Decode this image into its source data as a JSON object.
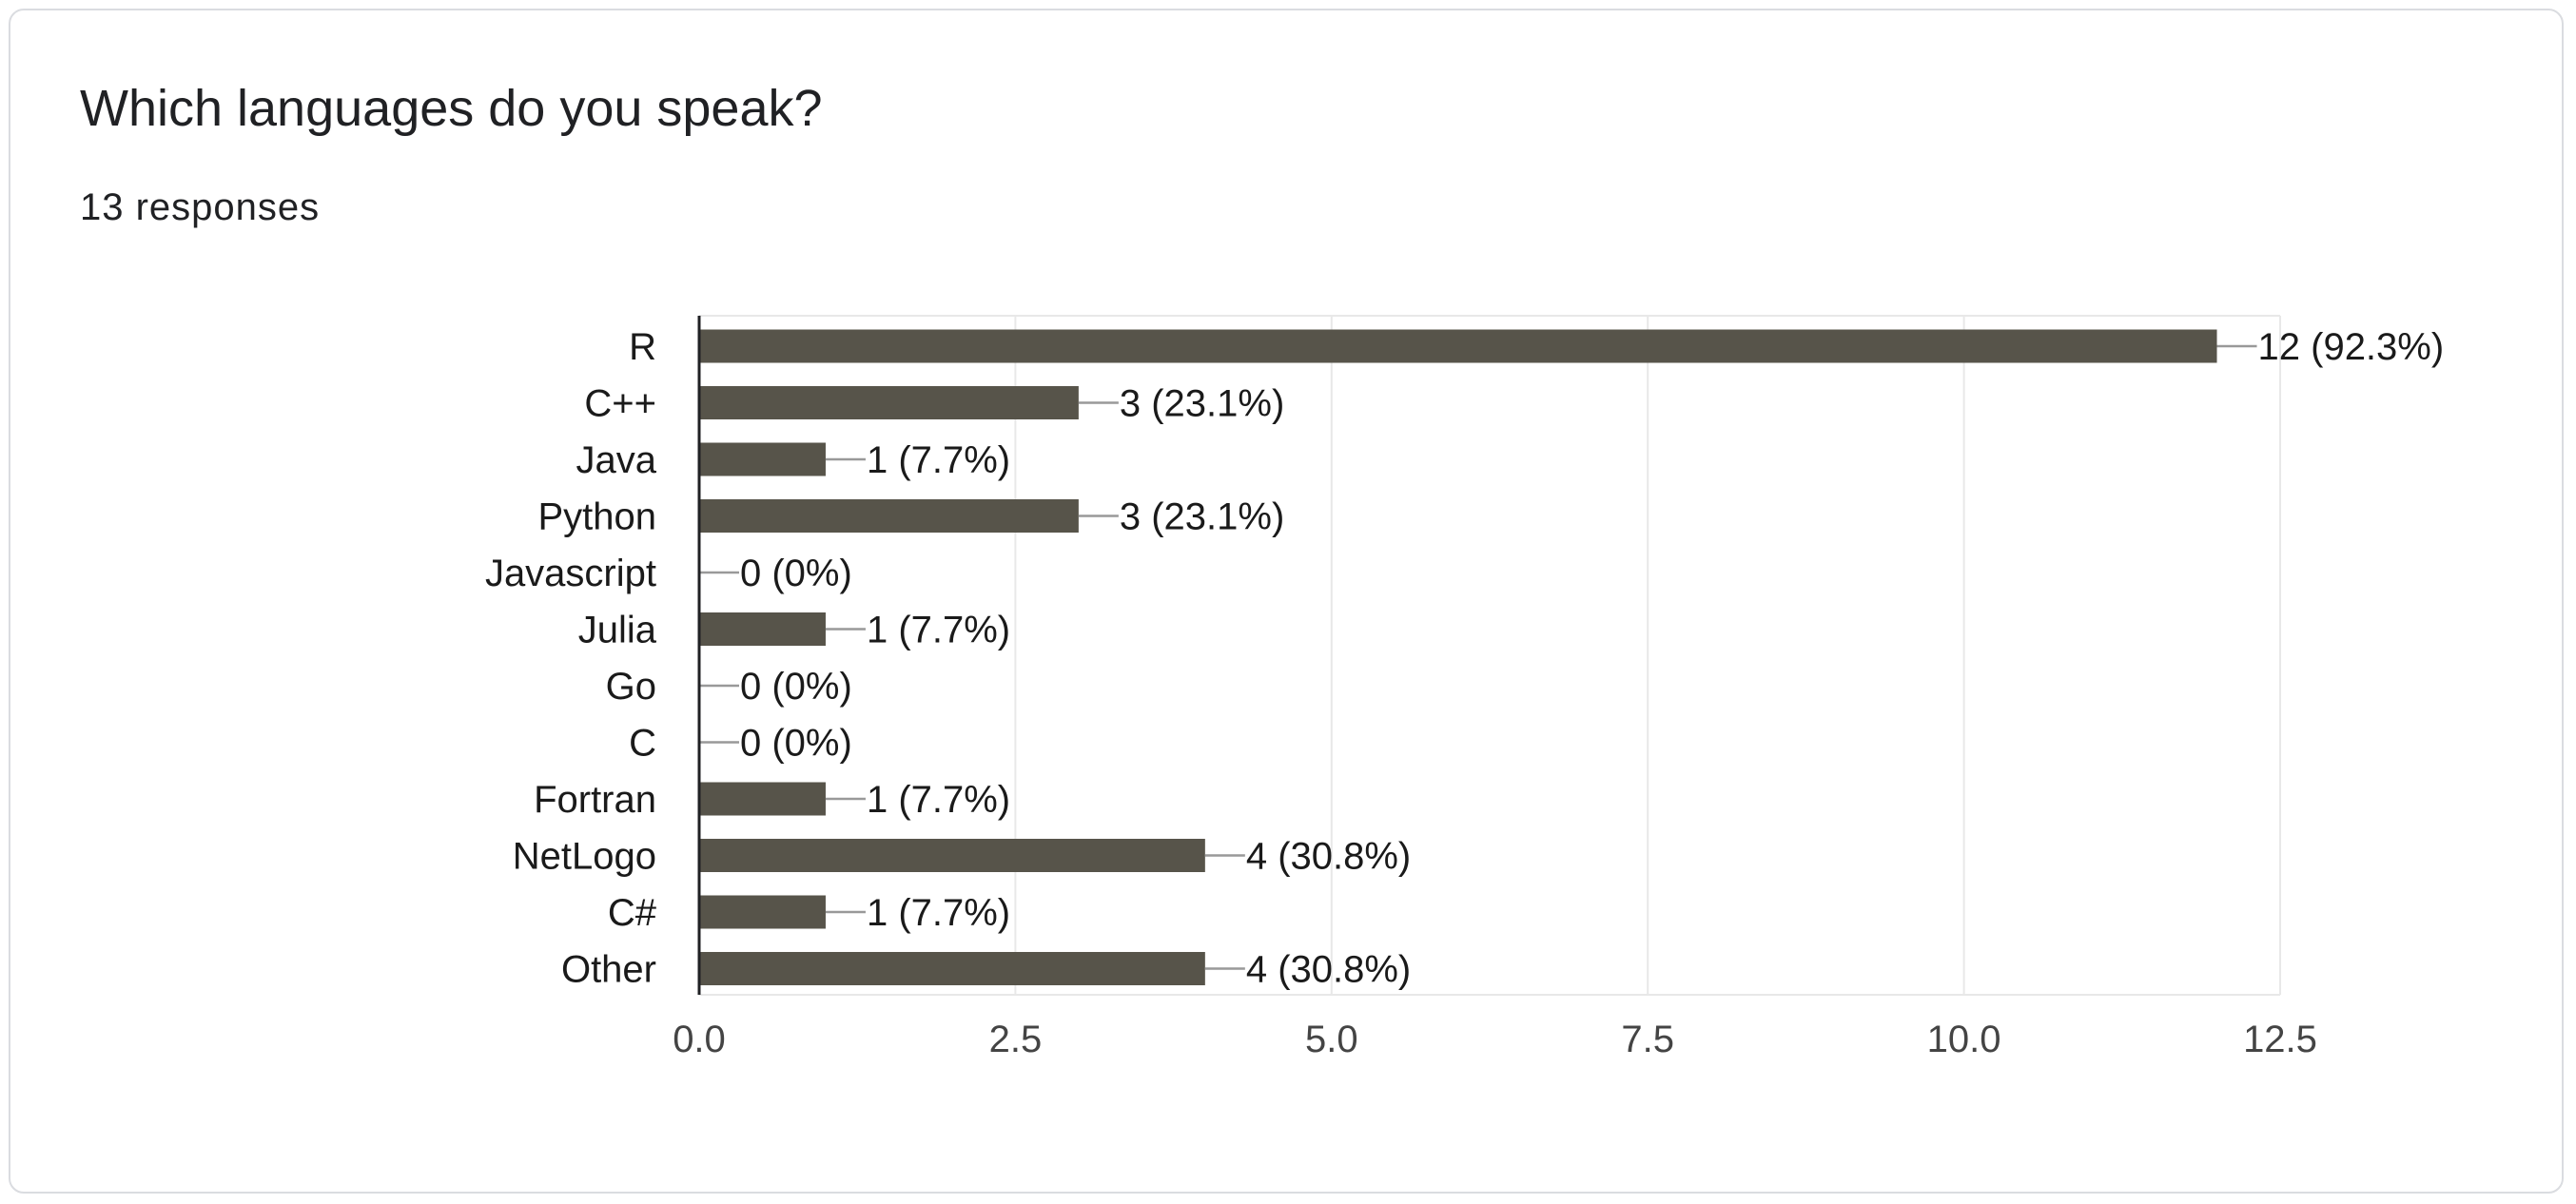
{
  "card": {
    "title": "Which languages do you speak?",
    "subtitle": "13 responses"
  },
  "chart_data": {
    "type": "bar",
    "orientation": "horizontal",
    "categories": [
      "R",
      "C++",
      "Java",
      "Python",
      "Javascript",
      "Julia",
      "Go",
      "C",
      "Fortran",
      "NetLogo",
      "C#",
      "Other"
    ],
    "values": [
      12,
      3,
      1,
      3,
      0,
      1,
      0,
      0,
      1,
      4,
      1,
      4
    ],
    "value_labels": [
      "12 (92.3%)",
      "3 (23.1%)",
      "1 (7.7%)",
      "3 (23.1%)",
      "0 (0%)",
      "1 (7.7%)",
      "0 (0%)",
      "0 (0%)",
      "1 (7.7%)",
      "4 (30.8%)",
      "1 (7.7%)",
      "4 (30.8%)"
    ],
    "xlim": [
      0,
      12.5
    ],
    "x_ticks": [
      0,
      2.5,
      5,
      7.5,
      10,
      12.5
    ],
    "x_tick_labels": [
      "0.0",
      "2.5",
      "5.0",
      "7.5",
      "10.0",
      "12.5"
    ],
    "title": "Which languages do you speak?",
    "xlabel": "",
    "ylabel": "",
    "grid": true,
    "legend": "none",
    "colors": {
      "bar": "#57544a",
      "grid": "#e8e8e8",
      "axis": "#202124",
      "connector": "#999999",
      "label_text": "#1a1a1a",
      "tick_text": "#444444"
    }
  }
}
